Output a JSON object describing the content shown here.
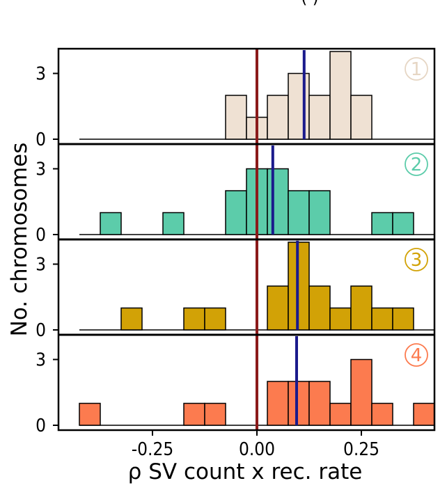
{
  "chart_data": {
    "type": "histogram",
    "title": "",
    "top_label_fragment": "( )",
    "xlabel": "ρ SV count x rec. rate",
    "ylabel": "No. chromosomes",
    "xlim": [
      -0.475,
      0.425
    ],
    "x_ticks": [
      {
        "value": -0.25,
        "label": "-0.25"
      },
      {
        "value": 0.0,
        "label": "0.00"
      },
      {
        "value": 0.25,
        "label": "0.25"
      }
    ],
    "y_ticks": [
      {
        "value": 0,
        "label": "0"
      },
      {
        "value": 3,
        "label": "3"
      }
    ],
    "bin_width": 0.05,
    "reference_line": {
      "x": 0.0,
      "color": "#8b1a1a"
    },
    "mean_line_color": "#1a1a8c",
    "panels": [
      {
        "label": "1",
        "color": "#efe1d3",
        "label_color": "#e6d6c4",
        "ylim": [
          0,
          4.4
        ],
        "mean": 0.113,
        "baseline_range": [
          -0.425,
          0.425
        ],
        "bins": [
          {
            "x0": -0.075,
            "count": 2
          },
          {
            "x0": -0.025,
            "count": 1
          },
          {
            "x0": 0.025,
            "count": 2
          },
          {
            "x0": 0.075,
            "count": 3
          },
          {
            "x0": 0.125,
            "count": 2
          },
          {
            "x0": 0.175,
            "count": 4
          },
          {
            "x0": 0.225,
            "count": 2
          }
        ]
      },
      {
        "label": "2",
        "color": "#5cccaa",
        "label_color": "#5cccaa",
        "ylim": [
          0,
          4.4
        ],
        "mean": 0.038,
        "baseline_range": [
          -0.425,
          0.425
        ],
        "bins": [
          {
            "x0": -0.375,
            "count": 1
          },
          {
            "x0": -0.225,
            "count": 1
          },
          {
            "x0": -0.075,
            "count": 2
          },
          {
            "x0": -0.025,
            "count": 3
          },
          {
            "x0": 0.025,
            "count": 3
          },
          {
            "x0": 0.075,
            "count": 2
          },
          {
            "x0": 0.125,
            "count": 2
          },
          {
            "x0": 0.275,
            "count": 1
          },
          {
            "x0": 0.325,
            "count": 1
          }
        ]
      },
      {
        "label": "3",
        "color": "#d2a206",
        "label_color": "#d2a206",
        "ylim": [
          0,
          4.4
        ],
        "mean": 0.097,
        "baseline_range": [
          -0.425,
          0.425
        ],
        "bins": [
          {
            "x0": -0.325,
            "count": 1
          },
          {
            "x0": -0.175,
            "count": 1
          },
          {
            "x0": -0.125,
            "count": 1
          },
          {
            "x0": 0.025,
            "count": 2
          },
          {
            "x0": 0.075,
            "count": 4
          },
          {
            "x0": 0.125,
            "count": 2
          },
          {
            "x0": 0.175,
            "count": 1
          },
          {
            "x0": 0.225,
            "count": 2
          },
          {
            "x0": 0.275,
            "count": 1
          },
          {
            "x0": 0.325,
            "count": 1
          }
        ]
      },
      {
        "label": "4",
        "color": "#fc7b4f",
        "label_color": "#fc7b4f",
        "ylim": [
          0,
          4.4
        ],
        "mean": 0.095,
        "baseline_range": [
          -0.425,
          0.425
        ],
        "bins": [
          {
            "x0": -0.425,
            "count": 1
          },
          {
            "x0": -0.175,
            "count": 1
          },
          {
            "x0": -0.125,
            "count": 1
          },
          {
            "x0": 0.025,
            "count": 2
          },
          {
            "x0": 0.075,
            "count": 2
          },
          {
            "x0": 0.125,
            "count": 2
          },
          {
            "x0": 0.175,
            "count": 1
          },
          {
            "x0": 0.225,
            "count": 3
          },
          {
            "x0": 0.275,
            "count": 1
          },
          {
            "x0": 0.375,
            "count": 1
          }
        ]
      }
    ]
  }
}
